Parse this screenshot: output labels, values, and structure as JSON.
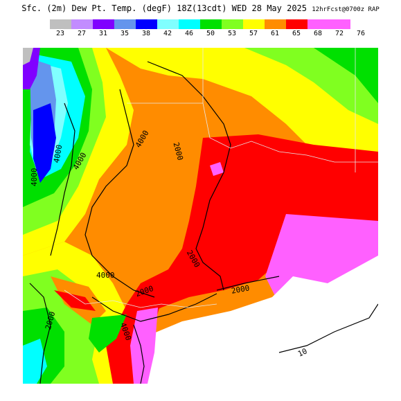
{
  "title": {
    "main": "Sfc. (2m) Dew Pt. Temp. (degF) 18Z(13cdt) WED 28 May 2025",
    "sub": "12hrFcst@0700z RAP"
  },
  "legend": {
    "ticks": [
      "23",
      "27",
      "31",
      "35",
      "38",
      "42",
      "46",
      "50",
      "53",
      "57",
      "61",
      "65",
      "68",
      "72",
      "76"
    ],
    "colors": [
      "#bfbfbf",
      "#c28cff",
      "#8000ff",
      "#6495ed",
      "#0000ff",
      "#80ffff",
      "#00ffff",
      "#00e000",
      "#80ff20",
      "#ffff00",
      "#ff8c00",
      "#ff0000",
      "#ff60ff",
      "#ff60ff"
    ]
  },
  "contour_labels": [
    "4000",
    "4000",
    "4000",
    "2000",
    "4000",
    "2000",
    "2000",
    "2000",
    "4000",
    "4000",
    "2000",
    "10"
  ]
}
